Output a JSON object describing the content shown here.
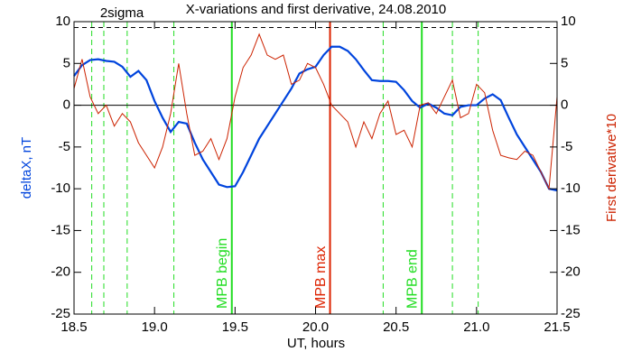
{
  "chart_data": {
    "type": "line",
    "title": "X-variations and first derivative, 24.08.2010",
    "annotation": "2sigma",
    "xlabel": "UT, hours",
    "ylabel": "deltaX, nT",
    "y2label": "First derivative*10",
    "x": [
      18.5,
      18.55,
      18.6,
      18.65,
      18.7,
      18.75,
      18.8,
      18.85,
      18.9,
      18.95,
      19.0,
      19.05,
      19.1,
      19.15,
      19.2,
      19.25,
      19.3,
      19.35,
      19.4,
      19.45,
      19.5,
      19.55,
      19.6,
      19.65,
      19.7,
      19.75,
      19.8,
      19.85,
      19.9,
      19.95,
      20.0,
      20.05,
      20.1,
      20.15,
      20.2,
      20.25,
      20.3,
      20.35,
      20.4,
      20.45,
      20.5,
      20.55,
      20.6,
      20.65,
      20.7,
      20.75,
      20.8,
      20.85,
      20.9,
      20.95,
      21.0,
      21.05,
      21.1,
      21.15,
      21.2,
      21.25,
      21.3,
      21.35,
      21.4,
      21.45,
      21.5
    ],
    "series": [
      {
        "name": "deltaX",
        "color": "#0044dd",
        "axis": "y",
        "values": [
          3.5,
          4.8,
          5.4,
          5.5,
          5.3,
          5.2,
          4.6,
          3.4,
          4.1,
          3.0,
          0.5,
          -1.5,
          -3.2,
          -2.0,
          -2.2,
          -4.5,
          -6.5,
          -8.0,
          -9.5,
          -9.8,
          -9.7,
          -8,
          -6,
          -4,
          -2.5,
          -1,
          0.5,
          2,
          3.8,
          4.3,
          4.6,
          6.0,
          7.0,
          7.0,
          6.5,
          5.5,
          4.2,
          3.0,
          2.9,
          2.9,
          2.8,
          1.8,
          0.5,
          -0.3,
          0.2,
          -0.3,
          -1.0,
          -1.2,
          -0.2,
          0,
          0,
          0.8,
          1.3,
          0.6,
          -1.5,
          -3.5,
          -5,
          -6.5,
          -8,
          -10,
          -10.2
        ]
      },
      {
        "name": "First derivative*10",
        "color": "#cc2200",
        "axis": "y2",
        "values": [
          2,
          5.5,
          1,
          -1,
          0,
          -2.5,
          -1,
          -2,
          -4.5,
          -6,
          -7.5,
          -5,
          -1,
          5,
          -1,
          -6,
          -5.5,
          -4,
          -6.5,
          -4,
          1,
          4.5,
          6,
          8.5,
          6,
          5.5,
          6,
          2.5,
          3,
          5,
          4.5,
          2.5,
          0,
          -1,
          -2,
          -5,
          -2,
          -4,
          -1,
          0.5,
          -3.5,
          -3,
          -5,
          0,
          0.3,
          -1,
          1,
          3,
          -1.5,
          -1,
          2.5,
          1.5,
          -3,
          -6,
          -6.3,
          -6.5,
          -5.5,
          -6,
          -8,
          -10,
          1
        ]
      }
    ],
    "vlines": [
      {
        "x": 18.61,
        "color": "#22dd22",
        "style": "dashed"
      },
      {
        "x": 18.685,
        "color": "#22dd22",
        "style": "dashed"
      },
      {
        "x": 18.83,
        "color": "#22dd22",
        "style": "dashed"
      },
      {
        "x": 19.12,
        "color": "#22dd22",
        "style": "dashed"
      },
      {
        "x": 19.48,
        "color": "#22dd22",
        "style": "solid",
        "label": "MPB begin"
      },
      {
        "x": 20.09,
        "color": "#dd2200",
        "style": "solid",
        "label": "MPB max"
      },
      {
        "x": 20.42,
        "color": "#22dd22",
        "style": "dashed"
      },
      {
        "x": 20.66,
        "color": "#22dd22",
        "style": "solid",
        "label": "MPB end"
      },
      {
        "x": 20.85,
        "color": "#22dd22",
        "style": "dashed"
      },
      {
        "x": 21.01,
        "color": "#22dd22",
        "style": "dashed"
      }
    ],
    "hlines": [
      {
        "y": 0,
        "color": "#000000",
        "style": "solid"
      },
      {
        "y": 9.3,
        "color": "#000000",
        "style": "dashed"
      }
    ],
    "xlim": [
      18.5,
      21.5
    ],
    "xticks": [
      18.5,
      {
        "value": 19,
        "label": "19.0"
      },
      19.5,
      {
        "value": 20,
        "label": "20.0"
      },
      20.5,
      {
        "value": 21,
        "label": "21.0"
      },
      21.5
    ],
    "ylim": [
      -25,
      10
    ],
    "yticks": [
      -25,
      -20,
      -15,
      -10,
      -5,
      0,
      5,
      10
    ],
    "y2lim": [
      -25,
      10
    ],
    "y2ticks": [
      -25,
      -20,
      -15,
      -10,
      -5,
      0,
      5,
      10
    ]
  }
}
